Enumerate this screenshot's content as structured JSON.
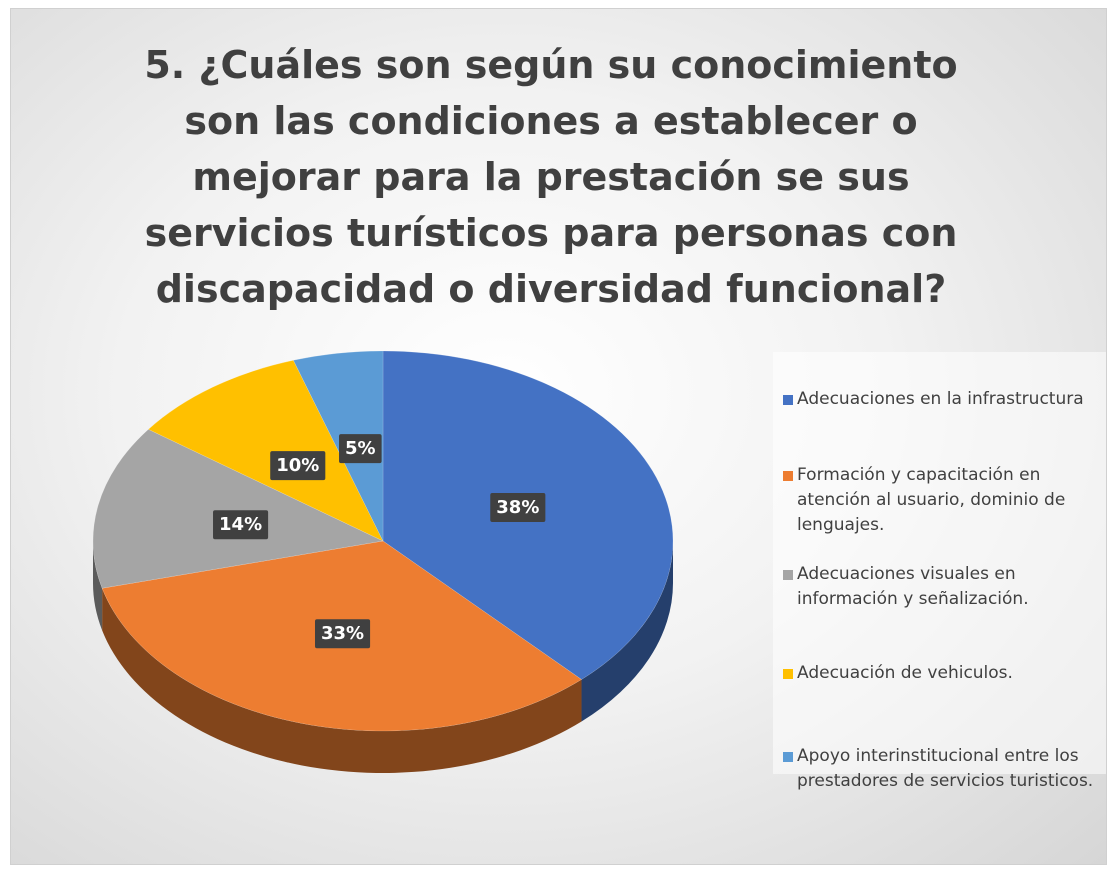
{
  "chart_data": {
    "type": "pie",
    "title": "5. ¿Cuáles son según su conocimiento son las condiciones a establecer o mejorar para la prestación se sus servicios turísticos para personas con discapacidad o diversidad funcional?",
    "categories": [
      "Adecuaciones en la infrastructura",
      "Formación y capacitación en atención al usuario, dominio de lenguajes.",
      "Adecuaciones visuales en información y señalización.",
      "Adecuación de vehiculos.",
      "Apoyo interinstitucional entre los prestadores de servicios turisticos."
    ],
    "values": [
      38,
      33,
      14,
      10,
      5
    ],
    "value_labels": [
      "38%",
      "33%",
      "14%",
      "10%",
      "5%"
    ],
    "colors": [
      "#4472c4",
      "#ed7d31",
      "#a5a5a5",
      "#ffc000",
      "#5b9bd5"
    ],
    "legend": "right"
  }
}
